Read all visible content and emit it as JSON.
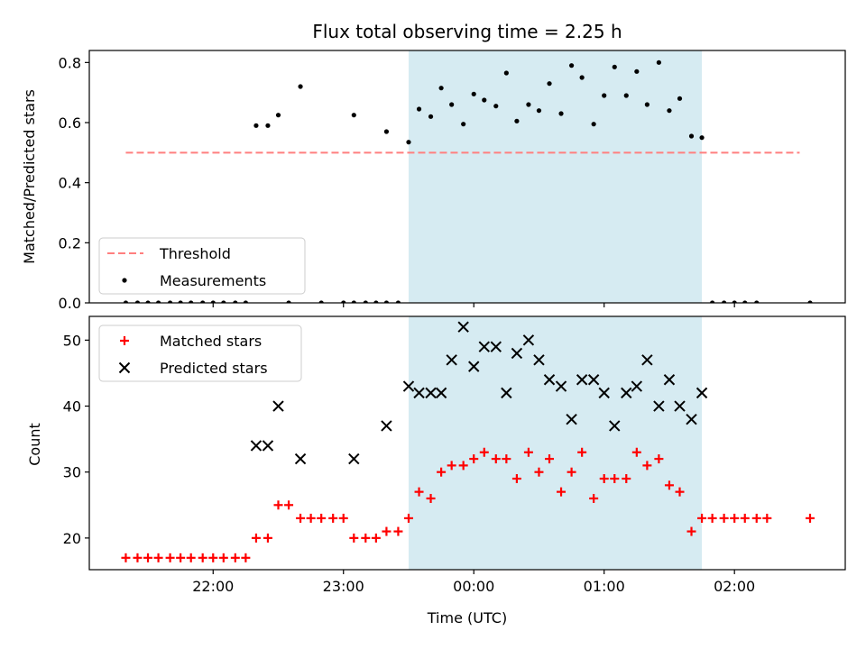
{
  "chart_data": [
    {
      "type": "scatter",
      "title": "Flux total observing time = 2.25 h",
      "ylabel": "Matched/Predicted stars",
      "ylim": [
        0,
        0.84
      ],
      "xlim": [
        -2.95,
        2.85
      ],
      "x_unit": "hours relative to 00:00 UTC",
      "yticks": [
        0.0,
        0.2,
        0.4,
        0.6,
        0.8
      ],
      "ytick_labels": [
        "0.0",
        "0.2",
        "0.4",
        "0.6",
        "0.8"
      ],
      "shaded_region": {
        "x0": -0.5,
        "x1": 1.75,
        "color": "#add8e6"
      },
      "threshold": {
        "y": 0.5,
        "x0": -2.67,
        "x1": 2.5,
        "color": "#ff7f7f"
      },
      "legend": {
        "position": "lower-left",
        "entries": [
          "Threshold",
          "Measurements"
        ]
      },
      "series": [
        {
          "name": "Measurements",
          "color": "#000000",
          "points": [
            [
              -2.67,
              0
            ],
            [
              -2.58,
              0
            ],
            [
              -2.5,
              0
            ],
            [
              -2.42,
              0
            ],
            [
              -2.33,
              0
            ],
            [
              -2.25,
              0
            ],
            [
              -2.17,
              0
            ],
            [
              -2.08,
              0
            ],
            [
              -2.0,
              0
            ],
            [
              -1.92,
              0
            ],
            [
              -1.83,
              0
            ],
            [
              -1.75,
              0
            ],
            [
              -1.67,
              0.59
            ],
            [
              -1.58,
              0.59
            ],
            [
              -1.5,
              0.625
            ],
            [
              -1.33,
              0.72
            ],
            [
              -1.42,
              0
            ],
            [
              -1.17,
              0
            ],
            [
              -1.0,
              0
            ],
            [
              -0.92,
              0
            ],
            [
              -0.83,
              0
            ],
            [
              -0.92,
              0.625
            ],
            [
              -0.75,
              0
            ],
            [
              -0.67,
              0
            ],
            [
              -0.67,
              0.57
            ],
            [
              -0.58,
              0
            ],
            [
              -0.5,
              0.535
            ],
            [
              -0.42,
              0.645
            ],
            [
              -0.33,
              0.62
            ],
            [
              -0.25,
              0.715
            ],
            [
              -0.17,
              0.66
            ],
            [
              -0.08,
              0.595
            ],
            [
              0.0,
              0.695
            ],
            [
              0.08,
              0.675
            ],
            [
              0.17,
              0.655
            ],
            [
              0.25,
              0.765
            ],
            [
              0.33,
              0.605
            ],
            [
              0.42,
              0.66
            ],
            [
              0.5,
              0.64
            ],
            [
              0.58,
              0.73
            ],
            [
              0.67,
              0.63
            ],
            [
              0.75,
              0.79
            ],
            [
              0.83,
              0.75
            ],
            [
              0.92,
              0.595
            ],
            [
              1.0,
              0.69
            ],
            [
              1.08,
              0.785
            ],
            [
              1.17,
              0.69
            ],
            [
              1.25,
              0.77
            ],
            [
              1.33,
              0.66
            ],
            [
              1.42,
              0.8
            ],
            [
              1.5,
              0.64
            ],
            [
              1.58,
              0.68
            ],
            [
              1.67,
              0.555
            ],
            [
              1.75,
              0.55
            ],
            [
              1.83,
              0
            ],
            [
              1.92,
              0
            ],
            [
              2.0,
              0
            ],
            [
              2.08,
              0
            ],
            [
              2.17,
              0
            ],
            [
              2.58,
              0
            ]
          ]
        }
      ]
    },
    {
      "type": "scatter",
      "xlabel": "Time (UTC)",
      "ylabel": "Count",
      "ylim": [
        15.2,
        53.6
      ],
      "xlim": [
        -2.95,
        2.85
      ],
      "x_unit": "hours relative to 00:00 UTC",
      "xticks": [
        -2,
        -1,
        0,
        1,
        2
      ],
      "xtick_labels": [
        "22:00",
        "23:00",
        "00:00",
        "01:00",
        "02:00"
      ],
      "yticks": [
        20,
        30,
        40,
        50
      ],
      "ytick_labels": [
        "20",
        "30",
        "40",
        "50"
      ],
      "shaded_region": {
        "x0": -0.5,
        "x1": 1.75,
        "color": "#add8e6"
      },
      "legend": {
        "position": "upper-left",
        "entries": [
          "Matched stars",
          "Predicted stars"
        ]
      },
      "series": [
        {
          "name": "Matched stars",
          "marker": "plus",
          "color": "#ff0000",
          "points": [
            [
              -2.67,
              17
            ],
            [
              -2.58,
              17
            ],
            [
              -2.5,
              17
            ],
            [
              -2.42,
              17
            ],
            [
              -2.33,
              17
            ],
            [
              -2.25,
              17
            ],
            [
              -2.17,
              17
            ],
            [
              -2.08,
              17
            ],
            [
              -2.0,
              17
            ],
            [
              -1.92,
              17
            ],
            [
              -1.83,
              17
            ],
            [
              -1.75,
              17
            ],
            [
              -1.67,
              20
            ],
            [
              -1.58,
              20
            ],
            [
              -1.5,
              25
            ],
            [
              -1.42,
              25
            ],
            [
              -1.33,
              23
            ],
            [
              -1.25,
              23
            ],
            [
              -1.17,
              23
            ],
            [
              -1.08,
              23
            ],
            [
              -1.0,
              23
            ],
            [
              -0.92,
              20
            ],
            [
              -0.83,
              20
            ],
            [
              -0.75,
              20
            ],
            [
              -0.67,
              21
            ],
            [
              -0.58,
              21
            ],
            [
              -0.5,
              23
            ],
            [
              -0.42,
              27
            ],
            [
              -0.33,
              26
            ],
            [
              -0.25,
              30
            ],
            [
              -0.17,
              31
            ],
            [
              -0.08,
              31
            ],
            [
              0.0,
              32
            ],
            [
              0.08,
              33
            ],
            [
              0.17,
              32
            ],
            [
              0.25,
              32
            ],
            [
              0.33,
              29
            ],
            [
              0.42,
              33
            ],
            [
              0.5,
              30
            ],
            [
              0.58,
              32
            ],
            [
              0.67,
              27
            ],
            [
              0.75,
              30
            ],
            [
              0.83,
              33
            ],
            [
              0.92,
              26
            ],
            [
              1.0,
              29
            ],
            [
              1.08,
              29
            ],
            [
              1.17,
              29
            ],
            [
              1.25,
              33
            ],
            [
              1.33,
              31
            ],
            [
              1.42,
              32
            ],
            [
              1.5,
              28
            ],
            [
              1.58,
              27
            ],
            [
              1.67,
              21
            ],
            [
              1.75,
              23
            ],
            [
              1.83,
              23
            ],
            [
              1.92,
              23
            ],
            [
              2.0,
              23
            ],
            [
              2.08,
              23
            ],
            [
              2.17,
              23
            ],
            [
              2.25,
              23
            ],
            [
              2.58,
              23
            ]
          ]
        },
        {
          "name": "Predicted stars",
          "marker": "x",
          "color": "#000000",
          "points": [
            [
              -1.67,
              34
            ],
            [
              -1.58,
              34
            ],
            [
              -1.5,
              40
            ],
            [
              -1.33,
              32
            ],
            [
              -0.92,
              32
            ],
            [
              -0.67,
              37
            ],
            [
              -0.5,
              43
            ],
            [
              -0.42,
              42
            ],
            [
              -0.33,
              42
            ],
            [
              -0.25,
              42
            ],
            [
              -0.17,
              47
            ],
            [
              -0.08,
              52
            ],
            [
              0.0,
              46
            ],
            [
              0.08,
              49
            ],
            [
              0.17,
              49
            ],
            [
              0.25,
              42
            ],
            [
              0.33,
              48
            ],
            [
              0.42,
              50
            ],
            [
              0.5,
              47
            ],
            [
              0.58,
              44
            ],
            [
              0.67,
              43
            ],
            [
              0.75,
              38
            ],
            [
              0.83,
              44
            ],
            [
              0.92,
              44
            ],
            [
              1.0,
              42
            ],
            [
              1.08,
              37
            ],
            [
              1.17,
              42
            ],
            [
              1.25,
              43
            ],
            [
              1.33,
              47
            ],
            [
              1.42,
              40
            ],
            [
              1.5,
              44
            ],
            [
              1.58,
              40
            ],
            [
              1.67,
              38
            ],
            [
              1.75,
              42
            ]
          ]
        }
      ]
    }
  ]
}
